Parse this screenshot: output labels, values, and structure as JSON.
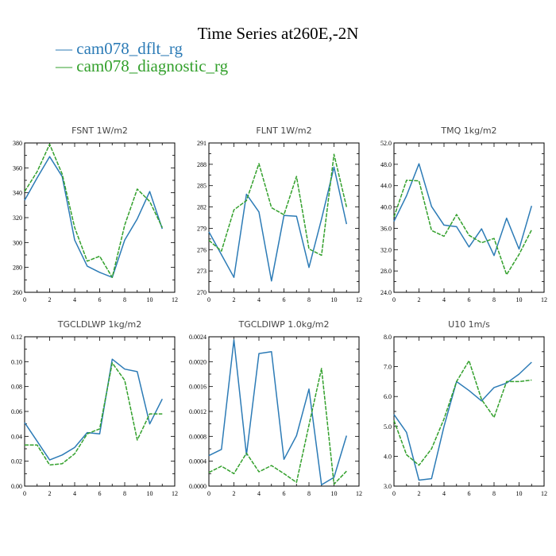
{
  "title": "Time Series at260E,-2N",
  "legend": [
    {
      "label": "— cam078_dflt_rg",
      "color": "#2c7bb6"
    },
    {
      "label": "— cam078_diagnostic_rg",
      "color": "#33a02c"
    }
  ],
  "colors": {
    "series1": "#2c7bb6",
    "series2": "#33a02c"
  },
  "chart_data": [
    {
      "type": "line",
      "title": "FSNT   1W/m2",
      "x": [
        0,
        1,
        2,
        3,
        4,
        5,
        6,
        7,
        8,
        9,
        10,
        11
      ],
      "xlim": [
        0,
        12
      ],
      "xticks": [
        0,
        2,
        4,
        6,
        8,
        10,
        12
      ],
      "ylim": [
        260,
        380
      ],
      "yticks": [
        260,
        280,
        300,
        320,
        340,
        360,
        380
      ],
      "ytick_labels": [
        "260",
        "280",
        "300",
        "320",
        "340",
        "360",
        "380"
      ],
      "series": [
        {
          "name": "cam078_dflt_rg",
          "values": [
            334,
            352,
            369,
            353,
            302,
            281,
            276,
            272,
            302,
            319,
            341,
            311
          ]
        },
        {
          "name": "cam078_diagnostic_rg",
          "values": [
            341,
            357,
            379,
            355,
            312,
            285,
            289,
            272,
            314,
            343,
            333,
            312
          ]
        }
      ]
    },
    {
      "type": "line",
      "title": "FLNT   1W/m2",
      "x": [
        0,
        1,
        2,
        3,
        4,
        5,
        6,
        7,
        8,
        9,
        10,
        11
      ],
      "xlim": [
        0,
        12
      ],
      "xticks": [
        0,
        2,
        4,
        6,
        8,
        10,
        12
      ],
      "ylim": [
        270,
        291
      ],
      "yticks": [
        270,
        273,
        276,
        279,
        282,
        285,
        288,
        291
      ],
      "ytick_labels": [
        "270",
        "273",
        "276",
        "279",
        "282",
        "285",
        "288",
        "291"
      ],
      "series": [
        {
          "name": "cam078_dflt_rg",
          "values": [
            278.5,
            275.3,
            272.1,
            283.8,
            281.3,
            271.6,
            280.8,
            280.7,
            273.5,
            280.3,
            287.6,
            279.6
          ]
        },
        {
          "name": "cam078_diagnostic_rg",
          "values": [
            277.3,
            275.8,
            281.6,
            282.9,
            288.1,
            281.9,
            280.9,
            286.3,
            276.1,
            275.2,
            289.4,
            282.0
          ]
        }
      ]
    },
    {
      "type": "line",
      "title": "TMQ   1kg/m2",
      "x": [
        0,
        1,
        2,
        3,
        4,
        5,
        6,
        7,
        8,
        9,
        10,
        11
      ],
      "xlim": [
        0,
        12
      ],
      "xticks": [
        0,
        2,
        4,
        6,
        8,
        10,
        12
      ],
      "ylim": [
        24,
        52
      ],
      "yticks": [
        24,
        28,
        32,
        36,
        40,
        44,
        48,
        52
      ],
      "ytick_labels": [
        "24.0",
        "28.0",
        "32.0",
        "36.0",
        "40.0",
        "44.0",
        "48.0",
        "52.0"
      ],
      "series": [
        {
          "name": "cam078_dflt_rg",
          "values": [
            37.3,
            42.1,
            48.1,
            40.1,
            36.6,
            36.3,
            32.5,
            35.9,
            30.9,
            37.9,
            32.1,
            40.2
          ]
        },
        {
          "name": "cam078_diagnostic_rg",
          "values": [
            38.1,
            45.0,
            44.9,
            35.6,
            34.5,
            38.6,
            34.7,
            33.3,
            34.1,
            27.3,
            31.1,
            35.7
          ]
        }
      ]
    },
    {
      "type": "line",
      "title": "TGCLDLWP   1kg/m2",
      "x": [
        0,
        1,
        2,
        3,
        4,
        5,
        6,
        7,
        8,
        9,
        10,
        11
      ],
      "xlim": [
        0,
        12
      ],
      "xticks": [
        0,
        2,
        4,
        6,
        8,
        10,
        12
      ],
      "ylim": [
        0,
        0.12
      ],
      "yticks": [
        0,
        0.02,
        0.04,
        0.06,
        0.08,
        0.1,
        0.12
      ],
      "ytick_labels": [
        "0.00",
        "0.02",
        "0.04",
        "0.06",
        "0.08",
        "0.10",
        "0.12"
      ],
      "series": [
        {
          "name": "cam078_dflt_rg",
          "values": [
            0.051,
            0.036,
            0.021,
            0.025,
            0.031,
            0.043,
            0.042,
            0.102,
            0.094,
            0.092,
            0.05,
            0.07
          ]
        },
        {
          "name": "cam078_diagnostic_rg",
          "values": [
            0.033,
            0.033,
            0.017,
            0.018,
            0.026,
            0.042,
            0.046,
            0.099,
            0.085,
            0.037,
            0.058,
            0.058
          ]
        }
      ]
    },
    {
      "type": "line",
      "title": "TGCLDIWP   1.0kg/m2",
      "x": [
        0,
        1,
        2,
        3,
        4,
        5,
        6,
        7,
        8,
        9,
        10,
        11
      ],
      "xlim": [
        0,
        12
      ],
      "xticks": [
        0,
        2,
        4,
        6,
        8,
        10,
        12
      ],
      "ylim": [
        0,
        0.0024
      ],
      "yticks": [
        0,
        0.0004,
        0.0008,
        0.0012,
        0.0016,
        0.002,
        0.0024
      ],
      "ytick_labels": [
        "0.0000",
        "0.0004",
        "0.0008",
        "0.0012",
        "0.0016",
        "0.0020",
        "0.0024"
      ],
      "series": [
        {
          "name": "cam078_dflt_rg",
          "values": [
            0.00049,
            0.00059,
            0.00235,
            0.0005,
            0.00213,
            0.00216,
            0.00043,
            0.00081,
            0.00156,
            2e-05,
            0.00014,
            0.00081
          ]
        },
        {
          "name": "cam078_diagnostic_rg",
          "values": [
            0.00022,
            0.00032,
            0.0002,
            0.00053,
            0.00023,
            0.00033,
            0.0002,
            6e-05,
            0.00098,
            0.00189,
            3e-05,
            0.00024
          ]
        }
      ]
    },
    {
      "type": "line",
      "title": "U10   1m/s",
      "x": [
        0,
        1,
        2,
        3,
        4,
        5,
        6,
        7,
        8,
        9,
        10,
        11
      ],
      "xlim": [
        0,
        12
      ],
      "xticks": [
        0,
        2,
        4,
        6,
        8,
        10,
        12
      ],
      "ylim": [
        3,
        8
      ],
      "yticks": [
        3,
        4,
        5,
        6,
        7,
        8
      ],
      "ytick_labels": [
        "3.0",
        "4.0",
        "5.0",
        "6.0",
        "7.0",
        "8.0"
      ],
      "series": [
        {
          "name": "cam078_dflt_rg",
          "values": [
            5.4,
            4.8,
            3.2,
            3.25,
            5.0,
            6.5,
            6.2,
            5.85,
            6.3,
            6.45,
            6.75,
            7.15
          ]
        },
        {
          "name": "cam078_diagnostic_rg",
          "values": [
            5.2,
            4.05,
            3.7,
            4.25,
            5.25,
            6.5,
            7.2,
            5.9,
            5.3,
            6.5,
            6.5,
            6.55
          ]
        }
      ]
    }
  ]
}
